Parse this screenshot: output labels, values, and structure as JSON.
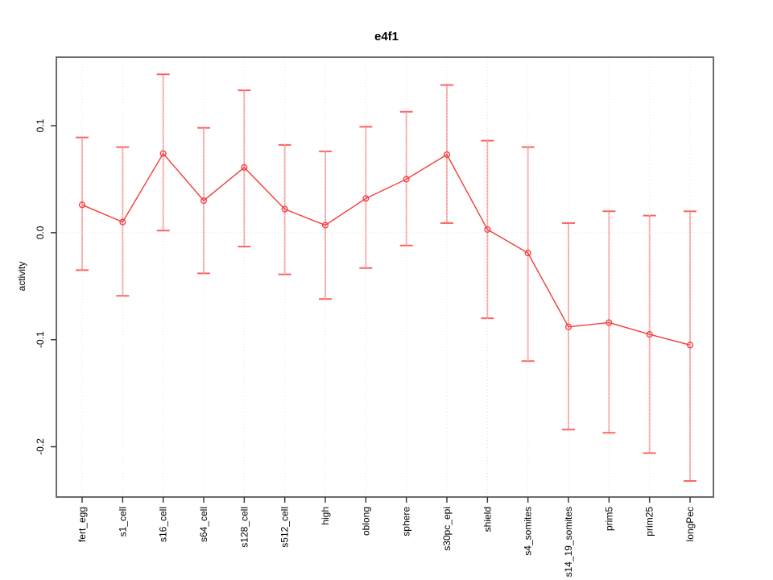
{
  "colors": {
    "series": "#f43c3c",
    "error_bar": "#ffa1a1",
    "error_cap": "#fb6363",
    "grid": "#e0e0e0",
    "axis_box": "#6b6b6b",
    "tick": "#3a3a3a",
    "text": "#000000",
    "background": "#ffffff"
  },
  "chart_data": {
    "type": "line",
    "title": "e4f1",
    "xlabel": "",
    "ylabel": "activity",
    "legend": "none",
    "grid": "vertical dotted line at each category; horizontal dotted line at y=0",
    "marker": "open-circle",
    "error_bars": true,
    "ylim": [
      -0.247,
      0.164
    ],
    "yticks": [
      0.1,
      0.0,
      -0.1,
      -0.2
    ],
    "ytick_labels": [
      "0.1",
      "0.0",
      "-0.1",
      "-0.2"
    ],
    "categories": [
      "fert_egg",
      "s1_cell",
      "s16_cell",
      "s64_cell",
      "s128_cell",
      "s512_cell",
      "high",
      "oblong",
      "sphere",
      "s30pc_epi",
      "shield",
      "s4_somites",
      "s14_19_somites",
      "prim5",
      "prim25",
      "longPec"
    ],
    "values": [
      0.026,
      0.01,
      0.074,
      0.03,
      0.061,
      0.022,
      0.007,
      0.032,
      0.05,
      0.073,
      0.003,
      -0.019,
      -0.088,
      -0.084,
      -0.095,
      -0.105
    ],
    "error_upper": [
      0.089,
      0.08,
      0.148,
      0.098,
      0.133,
      0.082,
      0.076,
      0.099,
      0.113,
      0.138,
      0.086,
      0.08,
      0.009,
      0.02,
      0.016,
      0.02
    ],
    "error_lower": [
      -0.035,
      -0.059,
      0.002,
      -0.038,
      -0.013,
      -0.039,
      -0.062,
      -0.033,
      -0.012,
      0.009,
      -0.08,
      -0.12,
      -0.184,
      -0.187,
      -0.206,
      -0.232
    ]
  }
}
